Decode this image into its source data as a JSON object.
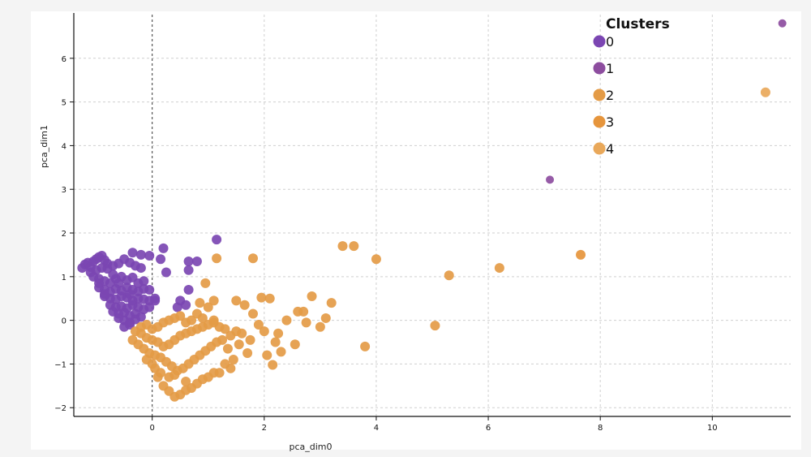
{
  "chart_data": {
    "type": "scatter",
    "title": "",
    "xlabel": "pca_dim0",
    "ylabel": "pca_dim1",
    "xlim": [
      -1.4,
      11.4
    ],
    "ylim": [
      -2.2,
      7.0
    ],
    "xticks": [
      0,
      2,
      4,
      6,
      8,
      10
    ],
    "yticks": [
      -2,
      -1,
      0,
      1,
      2,
      3,
      4,
      5,
      6
    ],
    "grid": true,
    "legend": {
      "title": "Clusters",
      "placement": "top-right"
    },
    "series": [
      {
        "name": "0",
        "color": "#7b46b2",
        "points": [
          [
            -1.25,
            1.2
          ],
          [
            -1.2,
            1.28
          ],
          [
            -1.15,
            1.32
          ],
          [
            -1.1,
            1.22
          ],
          [
            -1.05,
            1.35
          ],
          [
            -1.0,
            1.4
          ],
          [
            -0.95,
            1.45
          ],
          [
            -0.9,
            1.48
          ],
          [
            -0.85,
            1.38
          ],
          [
            -0.8,
            1.3
          ],
          [
            -1.1,
            1.1
          ],
          [
            -1.0,
            1.15
          ],
          [
            -0.9,
            1.2
          ],
          [
            -0.8,
            1.18
          ],
          [
            -0.7,
            1.25
          ],
          [
            -0.6,
            1.3
          ],
          [
            -0.5,
            1.4
          ],
          [
            -0.4,
            1.32
          ],
          [
            -0.3,
            1.25
          ],
          [
            -0.2,
            1.2
          ],
          [
            -1.05,
            1.0
          ],
          [
            -0.95,
            0.95
          ],
          [
            -0.85,
            0.9
          ],
          [
            -0.75,
            0.85
          ],
          [
            -0.65,
            0.95
          ],
          [
            -0.55,
            1.0
          ],
          [
            -0.45,
            0.92
          ],
          [
            -0.35,
            0.98
          ],
          [
            -0.25,
            0.85
          ],
          [
            -0.15,
            0.9
          ],
          [
            -0.95,
            0.75
          ],
          [
            -0.85,
            0.7
          ],
          [
            -0.75,
            0.65
          ],
          [
            -0.65,
            0.72
          ],
          [
            -0.55,
            0.68
          ],
          [
            -0.45,
            0.75
          ],
          [
            -0.35,
            0.7
          ],
          [
            -0.25,
            0.66
          ],
          [
            -0.15,
            0.72
          ],
          [
            -0.05,
            0.7
          ],
          [
            -0.85,
            0.55
          ],
          [
            -0.75,
            0.5
          ],
          [
            -0.65,
            0.48
          ],
          [
            -0.55,
            0.55
          ],
          [
            -0.45,
            0.52
          ],
          [
            -0.35,
            0.45
          ],
          [
            -0.25,
            0.5
          ],
          [
            -0.15,
            0.48
          ],
          [
            -0.05,
            0.45
          ],
          [
            0.05,
            0.5
          ],
          [
            -0.75,
            0.35
          ],
          [
            -0.65,
            0.3
          ],
          [
            -0.55,
            0.32
          ],
          [
            -0.45,
            0.28
          ],
          [
            -0.35,
            0.35
          ],
          [
            -0.25,
            0.3
          ],
          [
            -0.15,
            0.25
          ],
          [
            -0.05,
            0.3
          ],
          [
            -0.7,
            0.2
          ],
          [
            -0.6,
            0.15
          ],
          [
            -0.5,
            0.18
          ],
          [
            -0.4,
            0.1
          ],
          [
            -0.3,
            0.15
          ],
          [
            -0.2,
            0.08
          ],
          [
            -0.6,
            0.05
          ],
          [
            -0.5,
            0.0
          ],
          [
            -0.4,
            -0.05
          ],
          [
            -0.3,
            0.02
          ],
          [
            -0.5,
            -0.15
          ],
          [
            -0.4,
            -0.1
          ],
          [
            -0.35,
            1.55
          ],
          [
            -0.2,
            1.5
          ],
          [
            -0.05,
            1.48
          ],
          [
            0.2,
            1.65
          ],
          [
            0.15,
            1.4
          ],
          [
            0.25,
            1.1
          ],
          [
            0.65,
            1.35
          ],
          [
            0.65,
            1.15
          ],
          [
            0.65,
            0.7
          ],
          [
            0.5,
            0.45
          ],
          [
            0.6,
            0.35
          ],
          [
            0.45,
            0.3
          ],
          [
            0.05,
            0.45
          ],
          [
            1.15,
            1.85
          ],
          [
            0.8,
            1.35
          ],
          [
            -0.85,
            0.6
          ],
          [
            -0.95,
            0.85
          ],
          [
            -0.7,
            1.05
          ],
          [
            -0.6,
            0.85
          ],
          [
            -0.4,
            0.6
          ]
        ]
      },
      {
        "name": "1",
        "color": "#8d4d9f",
        "points": [
          [
            7.1,
            3.22
          ],
          [
            11.25,
            6.8
          ]
        ]
      },
      {
        "name": "2",
        "color": "#e49b46",
        "points": [
          [
            3.4,
            1.7
          ],
          [
            3.6,
            1.7
          ],
          [
            4.0,
            1.4
          ],
          [
            5.3,
            1.03
          ],
          [
            6.2,
            1.2
          ],
          [
            5.05,
            -0.12
          ],
          [
            3.8,
            -0.6
          ],
          [
            1.8,
            1.42
          ],
          [
            1.15,
            1.42
          ],
          [
            2.85,
            0.55
          ],
          [
            3.2,
            0.4
          ],
          [
            2.7,
            0.2
          ],
          [
            3.1,
            0.05
          ],
          [
            1.95,
            0.52
          ],
          [
            2.1,
            0.5
          ],
          [
            2.55,
            -0.55
          ],
          [
            2.3,
            -0.72
          ],
          [
            2.05,
            -0.8
          ],
          [
            2.15,
            -1.02
          ],
          [
            1.7,
            -0.75
          ],
          [
            1.45,
            -0.9
          ],
          [
            1.3,
            -1.0
          ],
          [
            1.1,
            -1.2
          ],
          [
            0.9,
            -1.35
          ],
          [
            0.7,
            -1.55
          ],
          [
            0.5,
            -1.7
          ],
          [
            0.4,
            -1.75
          ],
          [
            0.3,
            -1.62
          ],
          [
            0.2,
            -1.5
          ],
          [
            0.1,
            -1.3
          ],
          [
            -0.3,
            -0.25
          ],
          [
            -0.2,
            -0.3
          ],
          [
            -0.1,
            -0.4
          ],
          [
            0.0,
            -0.45
          ],
          [
            0.1,
            -0.5
          ],
          [
            0.2,
            -0.6
          ],
          [
            0.3,
            -0.55
          ],
          [
            0.4,
            -0.45
          ],
          [
            0.5,
            -0.35
          ],
          [
            0.6,
            -0.3
          ],
          [
            0.7,
            -0.25
          ],
          [
            0.8,
            -0.2
          ],
          [
            0.9,
            -0.15
          ],
          [
            1.0,
            -0.1
          ],
          [
            1.1,
            -0.05
          ],
          [
            1.2,
            -0.15
          ],
          [
            1.3,
            -0.2
          ],
          [
            1.4,
            -0.35
          ],
          [
            1.5,
            -0.25
          ],
          [
            1.6,
            -0.3
          ],
          [
            -0.35,
            -0.45
          ],
          [
            -0.25,
            -0.55
          ],
          [
            -0.15,
            -0.65
          ],
          [
            -0.05,
            -0.75
          ],
          [
            0.05,
            -0.8
          ],
          [
            0.15,
            -0.85
          ],
          [
            0.25,
            -0.95
          ],
          [
            0.35,
            -1.05
          ],
          [
            0.45,
            -1.15
          ],
          [
            0.55,
            -1.1
          ],
          [
            0.65,
            -1.0
          ],
          [
            0.75,
            -0.9
          ],
          [
            0.85,
            -0.8
          ],
          [
            0.95,
            -0.7
          ],
          [
            1.05,
            -0.6
          ],
          [
            1.15,
            -0.5
          ],
          [
            1.25,
            -0.45
          ],
          [
            -0.2,
            -0.15
          ],
          [
            -0.1,
            -0.1
          ],
          [
            0.0,
            -0.2
          ],
          [
            0.1,
            -0.15
          ],
          [
            0.2,
            -0.05
          ],
          [
            0.3,
            0.0
          ],
          [
            0.4,
            0.05
          ],
          [
            0.5,
            0.1
          ],
          [
            0.6,
            -0.05
          ],
          [
            0.7,
            0.0
          ],
          [
            0.8,
            0.15
          ],
          [
            0.9,
            0.05
          ],
          [
            1.0,
            0.3
          ],
          [
            1.1,
            0.0
          ],
          [
            0.3,
            -1.3
          ],
          [
            0.4,
            -1.25
          ],
          [
            0.6,
            -1.4
          ],
          [
            0.8,
            -1.45
          ],
          [
            1.0,
            -1.3
          ],
          [
            1.2,
            -1.2
          ],
          [
            1.4,
            -1.1
          ],
          [
            0.0,
            -1.0
          ],
          [
            -0.1,
            -0.9
          ],
          [
            1.5,
            0.45
          ],
          [
            1.65,
            0.35
          ],
          [
            1.8,
            0.15
          ],
          [
            1.9,
            -0.1
          ],
          [
            2.0,
            -0.25
          ],
          [
            2.2,
            -0.5
          ],
          [
            2.4,
            0.0
          ],
          [
            2.6,
            0.2
          ],
          [
            2.75,
            -0.05
          ],
          [
            3.0,
            -0.15
          ],
          [
            0.95,
            0.85
          ],
          [
            1.1,
            0.45
          ],
          [
            0.85,
            0.4
          ],
          [
            1.35,
            -0.65
          ],
          [
            1.55,
            -0.55
          ],
          [
            1.75,
            -0.45
          ],
          [
            2.25,
            -0.3
          ],
          [
            0.05,
            -1.1
          ],
          [
            0.15,
            -1.2
          ],
          [
            0.6,
            -1.6
          ]
        ]
      },
      {
        "name": "3",
        "color": "#e6953c",
        "points": [
          [
            7.65,
            1.5
          ]
        ]
      },
      {
        "name": "4",
        "color": "#e9a85a",
        "points": [
          [
            10.95,
            5.22
          ]
        ]
      }
    ]
  }
}
